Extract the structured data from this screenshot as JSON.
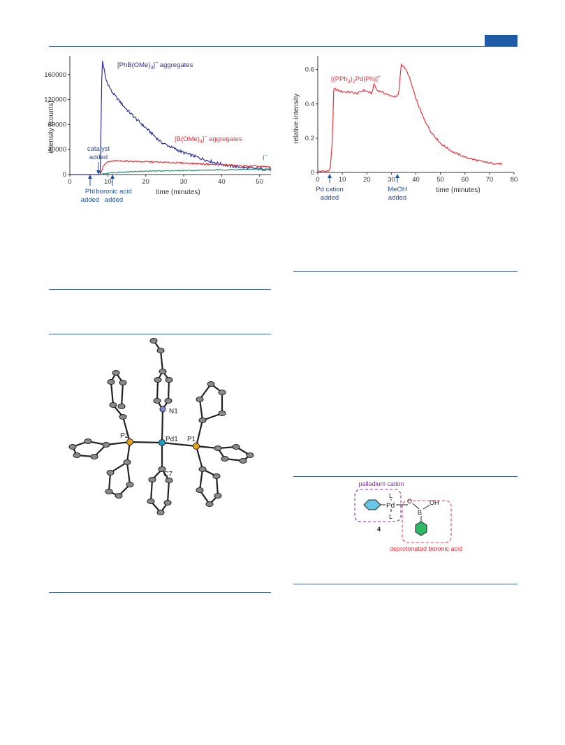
{
  "colors": {
    "rule": "#3b5fa0",
    "header_tab": "#1f5aa6",
    "blue_trace": "#2c2f9a",
    "red_trace": "#e8343c",
    "green_trace": "#2e8b6f",
    "annot_blue": "#1f4ea0",
    "purple": "#8a2fb0",
    "p_atom": "#e8a317",
    "n_atom": "#7f8fd0",
    "pd_atom": "#1aa3c0"
  },
  "chart_data": [
    {
      "type": "line",
      "ylabel": "intensity (counts)",
      "xlabel": "time (minutes)",
      "xlim": [
        0,
        53
      ],
      "ylim": [
        0,
        190000
      ],
      "xticks": [
        "0",
        "10",
        "20",
        "30",
        "40",
        "50"
      ],
      "yticks": [
        "0",
        "40000",
        "80000",
        "120000",
        "160000"
      ],
      "series": [
        {
          "name": "[PhB(OMe)3]⁻ aggregates",
          "x": [
            8,
            8.5,
            9.5,
            11,
            13,
            15,
            18,
            21,
            24,
            27,
            30,
            33,
            36,
            39,
            42,
            45,
            48,
            50,
            53
          ],
          "y": [
            0,
            186000,
            152000,
            133000,
            118000,
            104000,
            86000,
            69000,
            52000,
            43000,
            35000,
            29000,
            23000,
            18000,
            14000,
            12000,
            10000,
            9000,
            8000
          ]
        },
        {
          "name": "[B(OMe)4]⁻ aggregates",
          "x": [
            8,
            9,
            10,
            12,
            15,
            20,
            25,
            30,
            35,
            40,
            45,
            50,
            53
          ],
          "y": [
            0,
            15000,
            20000,
            22000,
            21500,
            20500,
            19500,
            18500,
            17000,
            15500,
            14000,
            13000,
            12000
          ]
        },
        {
          "name": "I⁻",
          "x": [
            8,
            9,
            11,
            14,
            18,
            25,
            30,
            35,
            40,
            45,
            50,
            53
          ],
          "y": [
            0,
            1500,
            3000,
            4000,
            5000,
            6000,
            6500,
            7000,
            7500,
            8000,
            8500,
            8500
          ]
        }
      ],
      "annotations": [
        {
          "text": "PhI\nadded",
          "x": 1.5
        },
        {
          "text": "catalyst\nadded",
          "x": 4
        },
        {
          "text": "boronic acid\nadded",
          "x": 8
        }
      ]
    },
    {
      "type": "line",
      "ylabel": "relative intensity",
      "xlabel": "time (minutes)",
      "xlim": [
        0,
        80
      ],
      "ylim": [
        0,
        0.68
      ],
      "xticks": [
        "0",
        "10",
        "20",
        "30",
        "40",
        "50",
        "60",
        "70",
        "80"
      ],
      "yticks": [
        "0",
        "0.2",
        "0.4",
        "0.6"
      ],
      "series": [
        {
          "name": "[(PPh3)2Pd(Ph)]⁺",
          "x": [
            0,
            5,
            6,
            6.5,
            8,
            10,
            13,
            16,
            19,
            22,
            23,
            24,
            26,
            29,
            32,
            33,
            34,
            35,
            37,
            40,
            43,
            46,
            50,
            55,
            60,
            65,
            70,
            75
          ],
          "y": [
            0.005,
            0.01,
            0.2,
            0.49,
            0.48,
            0.47,
            0.47,
            0.46,
            0.48,
            0.46,
            0.52,
            0.48,
            0.47,
            0.45,
            0.44,
            0.46,
            0.63,
            0.62,
            0.57,
            0.43,
            0.32,
            0.24,
            0.17,
            0.12,
            0.09,
            0.07,
            0.055,
            0.05
          ]
        }
      ],
      "annotations": [
        {
          "text": "Pd cation\nadded",
          "x": 5
        },
        {
          "text": "MeOH\nadded",
          "x": 33
        }
      ]
    }
  ],
  "structure": {
    "atom_labels": [
      "N1",
      "P2",
      "Pd1",
      "P1",
      "C7"
    ]
  },
  "scheme": {
    "palladium_label": "palladium cation",
    "pd": "Pd",
    "ligand_top": "L",
    "ligand_bottom": "L",
    "oxygen": "O",
    "boron": "B",
    "hydroxyl": "OH",
    "compound_number": "4",
    "boronic_label": "deprotonated boronic acid"
  }
}
